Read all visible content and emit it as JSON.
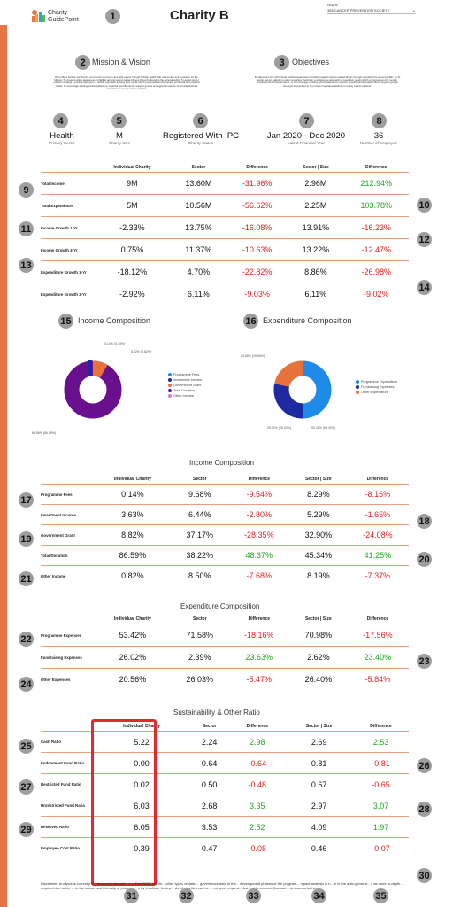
{
  "header": {
    "logo_line1": "Charity",
    "logo_line2": "GuidePoint",
    "title": "Charity B",
    "name_label": "Name",
    "name_value": "365 CANCER PREVENTION SOCIETY"
  },
  "mission": {
    "title": "Mission & Vision",
    "text": "Vision Be a Society serving the community to prevent and fight cancer through holistic health with caring care and a passion for life. Mission To create positive awareness in battling against cancer-related illness through educating the general public. To assist cancer patients to adopt a positive lifestyle in a holistic approach to meet their needs which encompasses the mental, emotional and physical needs. To encourage existing cancer patients to organize specific cancer support groups amongst themselves To provide financial assistance to needy cancer patients."
  },
  "objectives": {
    "title": "Objectives",
    "text": "Its objectives are: a)To create positive awareness in battling against cancer-related illness through educating the general public. b) To assist cancer patients to adopt a positive lifestyle in a wholesome approach to meet their needs which encompasses the mental, emotional and physical needs. c) To encourage existing cancer patients to organize specific cancer related illness support groups amongst themselves d) To provide financial assistance to needy cancer patients."
  },
  "stats": [
    {
      "value": "Health",
      "label": "Primary Sector"
    },
    {
      "value": "M",
      "label": "Charity Size"
    },
    {
      "value": "Registered With IPC",
      "label": "Charity Status"
    },
    {
      "value": "Jan 2020 - Dec 2020",
      "label": "Latest Financial Year"
    },
    {
      "value": "36",
      "label": "Number of Employee"
    }
  ],
  "col_headers": [
    "Individual Charity",
    "Sector",
    "Difference",
    "Sector | Size",
    "Difference"
  ],
  "main_table": [
    {
      "label": "Total Income",
      "v": [
        "9M",
        "13.60M",
        "-31.96%",
        "2.96M",
        "212.94%"
      ]
    },
    {
      "label": "Total Expenditure",
      "v": [
        "5M",
        "10.56M",
        "-56.62%",
        "2.25M",
        "103.78%"
      ]
    },
    {
      "label": "Income Growth 1-Yr",
      "v": [
        "-2.33%",
        "13.75%",
        "-16.08%",
        "13.91%",
        "-16.23%"
      ]
    },
    {
      "label": "Income Growth 3-Yr",
      "v": [
        "0.75%",
        "11.37%",
        "-10.63%",
        "13.22%",
        "-12.47%"
      ]
    },
    {
      "label": "Expenditure Growth 1-Yr",
      "v": [
        "-18.12%",
        "4.70%",
        "-22.82%",
        "8.86%",
        "-26.98%"
      ]
    },
    {
      "label": "Expenditure Growth 3-Yr",
      "v": [
        "-2.92%",
        "6.11%",
        "-9.03%",
        "6.11%",
        "-9.02%"
      ]
    }
  ],
  "income_chart": {
    "title": "Income Composition",
    "slice_labels": [
      "0.14% (0.14%)",
      "8.82% (8.82%)",
      "86.59% (86.59%)"
    ],
    "legend": [
      "Programme Fees",
      "Investment Income",
      "Government Grant",
      "Total Donation",
      "Other Income"
    ]
  },
  "expenditure_chart": {
    "title": "Expenditure Composition",
    "slice_labels": [
      "20.56% (20.56%)",
      "26.02% (26.02%)",
      "53.42% (53.42%)"
    ],
    "legend": [
      "Programme Expenditure",
      "Fundraising Expenses",
      "Other Expenditure"
    ]
  },
  "income_table": {
    "title": "Income Composition",
    "rows": [
      {
        "label": "Programme Fees",
        "v": [
          "0.14%",
          "9.68%",
          "-9.54%",
          "8.29%",
          "-8.15%"
        ]
      },
      {
        "label": "Investment Income",
        "v": [
          "3.63%",
          "6.44%",
          "-2.80%",
          "5.29%",
          "-1.65%"
        ]
      },
      {
        "label": "Government Grant",
        "v": [
          "8.82%",
          "37.17%",
          "-28.35%",
          "32.90%",
          "-24.08%"
        ]
      },
      {
        "label": "Total Donation",
        "v": [
          "86.59%",
          "38.22%",
          "48.37%",
          "45.34%",
          "41.25%"
        ]
      },
      {
        "label": "Other Income",
        "v": [
          "0.82%",
          "8.50%",
          "-7.68%",
          "8.19%",
          "-7.37%"
        ]
      }
    ]
  },
  "expenditure_table": {
    "title": "Expenditure Composition",
    "rows": [
      {
        "label": "Programme Expenses",
        "v": [
          "53.42%",
          "71.58%",
          "-18.16%",
          "70.98%",
          "-17.56%"
        ]
      },
      {
        "label": "Fundraising Expenses",
        "v": [
          "26.02%",
          "2.39%",
          "23.63%",
          "2.62%",
          "23.40%"
        ]
      },
      {
        "label": "Other Expenses",
        "v": [
          "20.56%",
          "26.03%",
          "-5.47%",
          "26.40%",
          "-5.84%"
        ]
      }
    ]
  },
  "ratio_table": {
    "title": "Sustainability & Other Ratio",
    "rows": [
      {
        "label": "Cash Ratio",
        "v": [
          "5.22",
          "2.24",
          "2.98",
          "2.69",
          "2.53"
        ]
      },
      {
        "label": "Endowment Fund Ratio",
        "v": [
          "0.00",
          "0.64",
          "-0.64",
          "0.81",
          "-0.81"
        ]
      },
      {
        "label": "Restricted Fund Ratio",
        "v": [
          "0.02",
          "0.50",
          "-0.48",
          "0.67",
          "-0.65"
        ]
      },
      {
        "label": "Unrestricted Fund Ratio",
        "v": [
          "6.03",
          "2.68",
          "3.35",
          "2.97",
          "3.07"
        ]
      },
      {
        "label": "Reserved Ratio",
        "v": [
          "6.05",
          "3.53",
          "2.52",
          "4.09",
          "1.97"
        ]
      },
      {
        "label": "Employee Cost Ratio",
        "v": [
          "0.39",
          "0.47",
          "-0.08",
          "0.46",
          "-0.07"
        ]
      }
    ]
  },
  "disclaimer": "Disclaimer: Analysis is currently b... financial informati... s of Feb 2022. We wi... other types of data ... governance data in the... development phases of the program... mpact analysis is n... e in the auto-generat... s as more in-depth ... required due to the ... in the nature and intensity of program... n by charities. In-dep... sis of charities can be ... ed upon request, plea... ut to connect@sonsor... to discuss further",
  "colors": {
    "accent": "#e87545",
    "badge": "#9e9e9e",
    "negative": "#e02020",
    "positive": "#1fa51f",
    "purple": "#6a0f8e",
    "navy": "#1f2aa0",
    "orange": "#e8733a",
    "blue": "#1e8be8",
    "highlight_box": "#e8282d"
  }
}
